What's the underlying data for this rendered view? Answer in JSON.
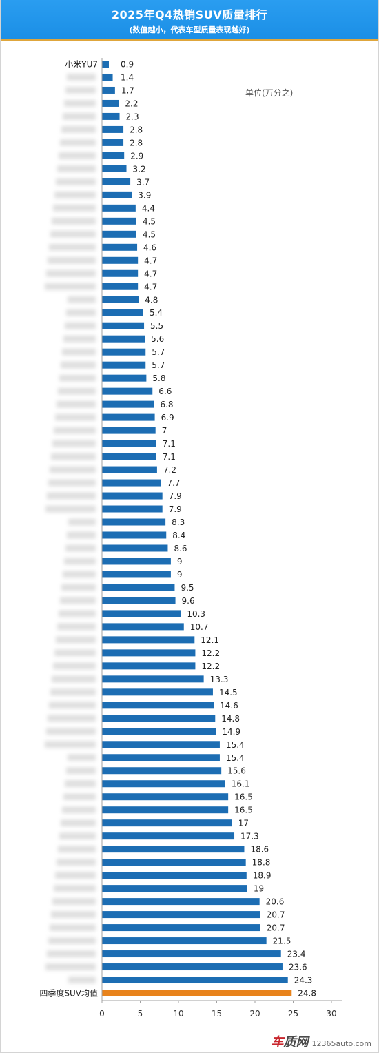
{
  "colors": {
    "header_bg": "#1b8fe6",
    "header_line": "#dfa63c",
    "bar": "#1c6db3",
    "highlight_bar": "#e8831c",
    "axis": "#a0a0a0"
  },
  "chart_data": {
    "type": "bar",
    "orientation": "horizontal",
    "title": "2025年Q4热销SUV质量排行",
    "subtitle": "(数值越小，代表车型质量表现越好)",
    "unit_label": "单位(万分之)",
    "categories": [
      "小米YU7",
      "",
      "",
      "",
      "",
      "",
      "",
      "",
      "",
      "",
      "",
      "",
      "",
      "",
      "",
      "",
      "",
      "",
      "",
      "",
      "",
      "",
      "",
      "",
      "",
      "",
      "",
      "",
      "",
      "",
      "",
      "",
      "",
      "",
      "",
      "",
      "",
      "",
      "",
      "",
      "",
      "",
      "",
      "",
      "",
      "",
      "",
      "",
      "",
      "",
      "",
      "",
      "",
      "",
      "",
      "",
      "",
      "",
      "",
      "",
      "",
      "",
      "",
      "",
      "",
      "",
      "",
      "",
      "",
      "",
      "",
      "四季度SUV均值"
    ],
    "values": [
      0.9,
      1.4,
      1.7,
      2.2,
      2.3,
      2.8,
      2.8,
      2.9,
      3.2,
      3.7,
      3.9,
      4.4,
      4.5,
      4.5,
      4.6,
      4.7,
      4.7,
      4.7,
      4.8,
      5.4,
      5.5,
      5.6,
      5.7,
      5.7,
      5.8,
      6.6,
      6.8,
      6.9,
      7,
      7.1,
      7.1,
      7.2,
      7.7,
      7.9,
      7.9,
      8.3,
      8.4,
      8.6,
      9,
      9,
      9.5,
      9.6,
      10.3,
      10.7,
      12.1,
      12.2,
      12.2,
      13.3,
      14.5,
      14.6,
      14.8,
      14.9,
      15.4,
      15.4,
      15.6,
      16.1,
      16.5,
      16.5,
      17,
      17.3,
      18.6,
      18.8,
      18.9,
      19,
      20.6,
      20.7,
      20.7,
      21.5,
      23.4,
      23.6,
      24.3,
      24.8
    ],
    "highlight_category": "四季度SUV均值",
    "xlim": [
      0,
      30
    ],
    "xticks": [
      0,
      5,
      10,
      15,
      20,
      25,
      30
    ],
    "grid": false,
    "legend": false
  },
  "footer": {
    "logo_brand": "车质网",
    "logo_url": "12365auto.com"
  }
}
